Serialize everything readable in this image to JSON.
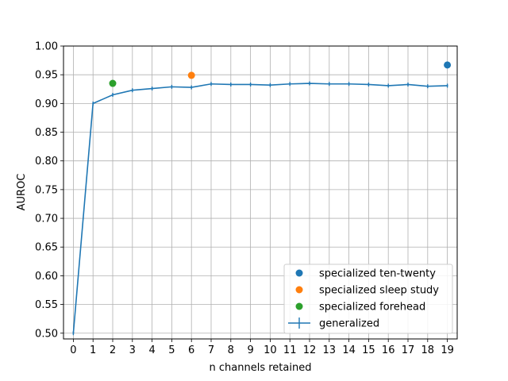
{
  "chart_data": {
    "type": "line",
    "title": "",
    "xlabel": "n channels retained",
    "ylabel": "AUROC",
    "xlim": [
      -0.5,
      19.5
    ],
    "ylim": [
      0.49,
      1.0
    ],
    "xticks": [
      0,
      1,
      2,
      3,
      4,
      5,
      6,
      7,
      8,
      9,
      10,
      11,
      12,
      13,
      14,
      15,
      16,
      17,
      18,
      19
    ],
    "yticks": [
      0.5,
      0.55,
      0.6,
      0.65,
      0.7,
      0.75,
      0.8,
      0.85,
      0.9,
      0.95,
      1.0
    ],
    "ytick_labels": [
      "0.50",
      "0.55",
      "0.60",
      "0.65",
      "0.70",
      "0.75",
      "0.80",
      "0.85",
      "0.90",
      "0.95",
      "1.00"
    ],
    "grid": true,
    "legend_position": "lower-right",
    "series": [
      {
        "name": "generalized",
        "style": "errorbar-line",
        "color": "#1f77b4",
        "x": [
          0,
          1,
          2,
          3,
          4,
          5,
          6,
          7,
          8,
          9,
          10,
          11,
          12,
          13,
          14,
          15,
          16,
          17,
          18,
          19
        ],
        "y": [
          0.5,
          0.9,
          0.915,
          0.923,
          0.926,
          0.929,
          0.928,
          0.934,
          0.933,
          0.933,
          0.932,
          0.934,
          0.935,
          0.934,
          0.934,
          0.933,
          0.931,
          0.933,
          0.93,
          0.931
        ],
        "yerr": [
          0.0,
          0.002,
          0.002,
          0.002,
          0.002,
          0.002,
          0.002,
          0.002,
          0.002,
          0.003,
          0.002,
          0.002,
          0.002,
          0.002,
          0.002,
          0.002,
          0.002,
          0.002,
          0.002,
          0.002
        ]
      },
      {
        "name": "specialized ten-twenty",
        "style": "scatter",
        "color": "#1f77b4",
        "x": [
          19
        ],
        "y": [
          0.967
        ]
      },
      {
        "name": "specialized sleep study",
        "style": "scatter",
        "color": "#ff7f0e",
        "x": [
          6
        ],
        "y": [
          0.949
        ]
      },
      {
        "name": "specialized forehead",
        "style": "scatter",
        "color": "#2ca02c",
        "x": [
          2
        ],
        "y": [
          0.935
        ]
      }
    ],
    "legend_order": [
      "specialized ten-twenty",
      "specialized sleep study",
      "specialized forehead",
      "generalized"
    ]
  }
}
